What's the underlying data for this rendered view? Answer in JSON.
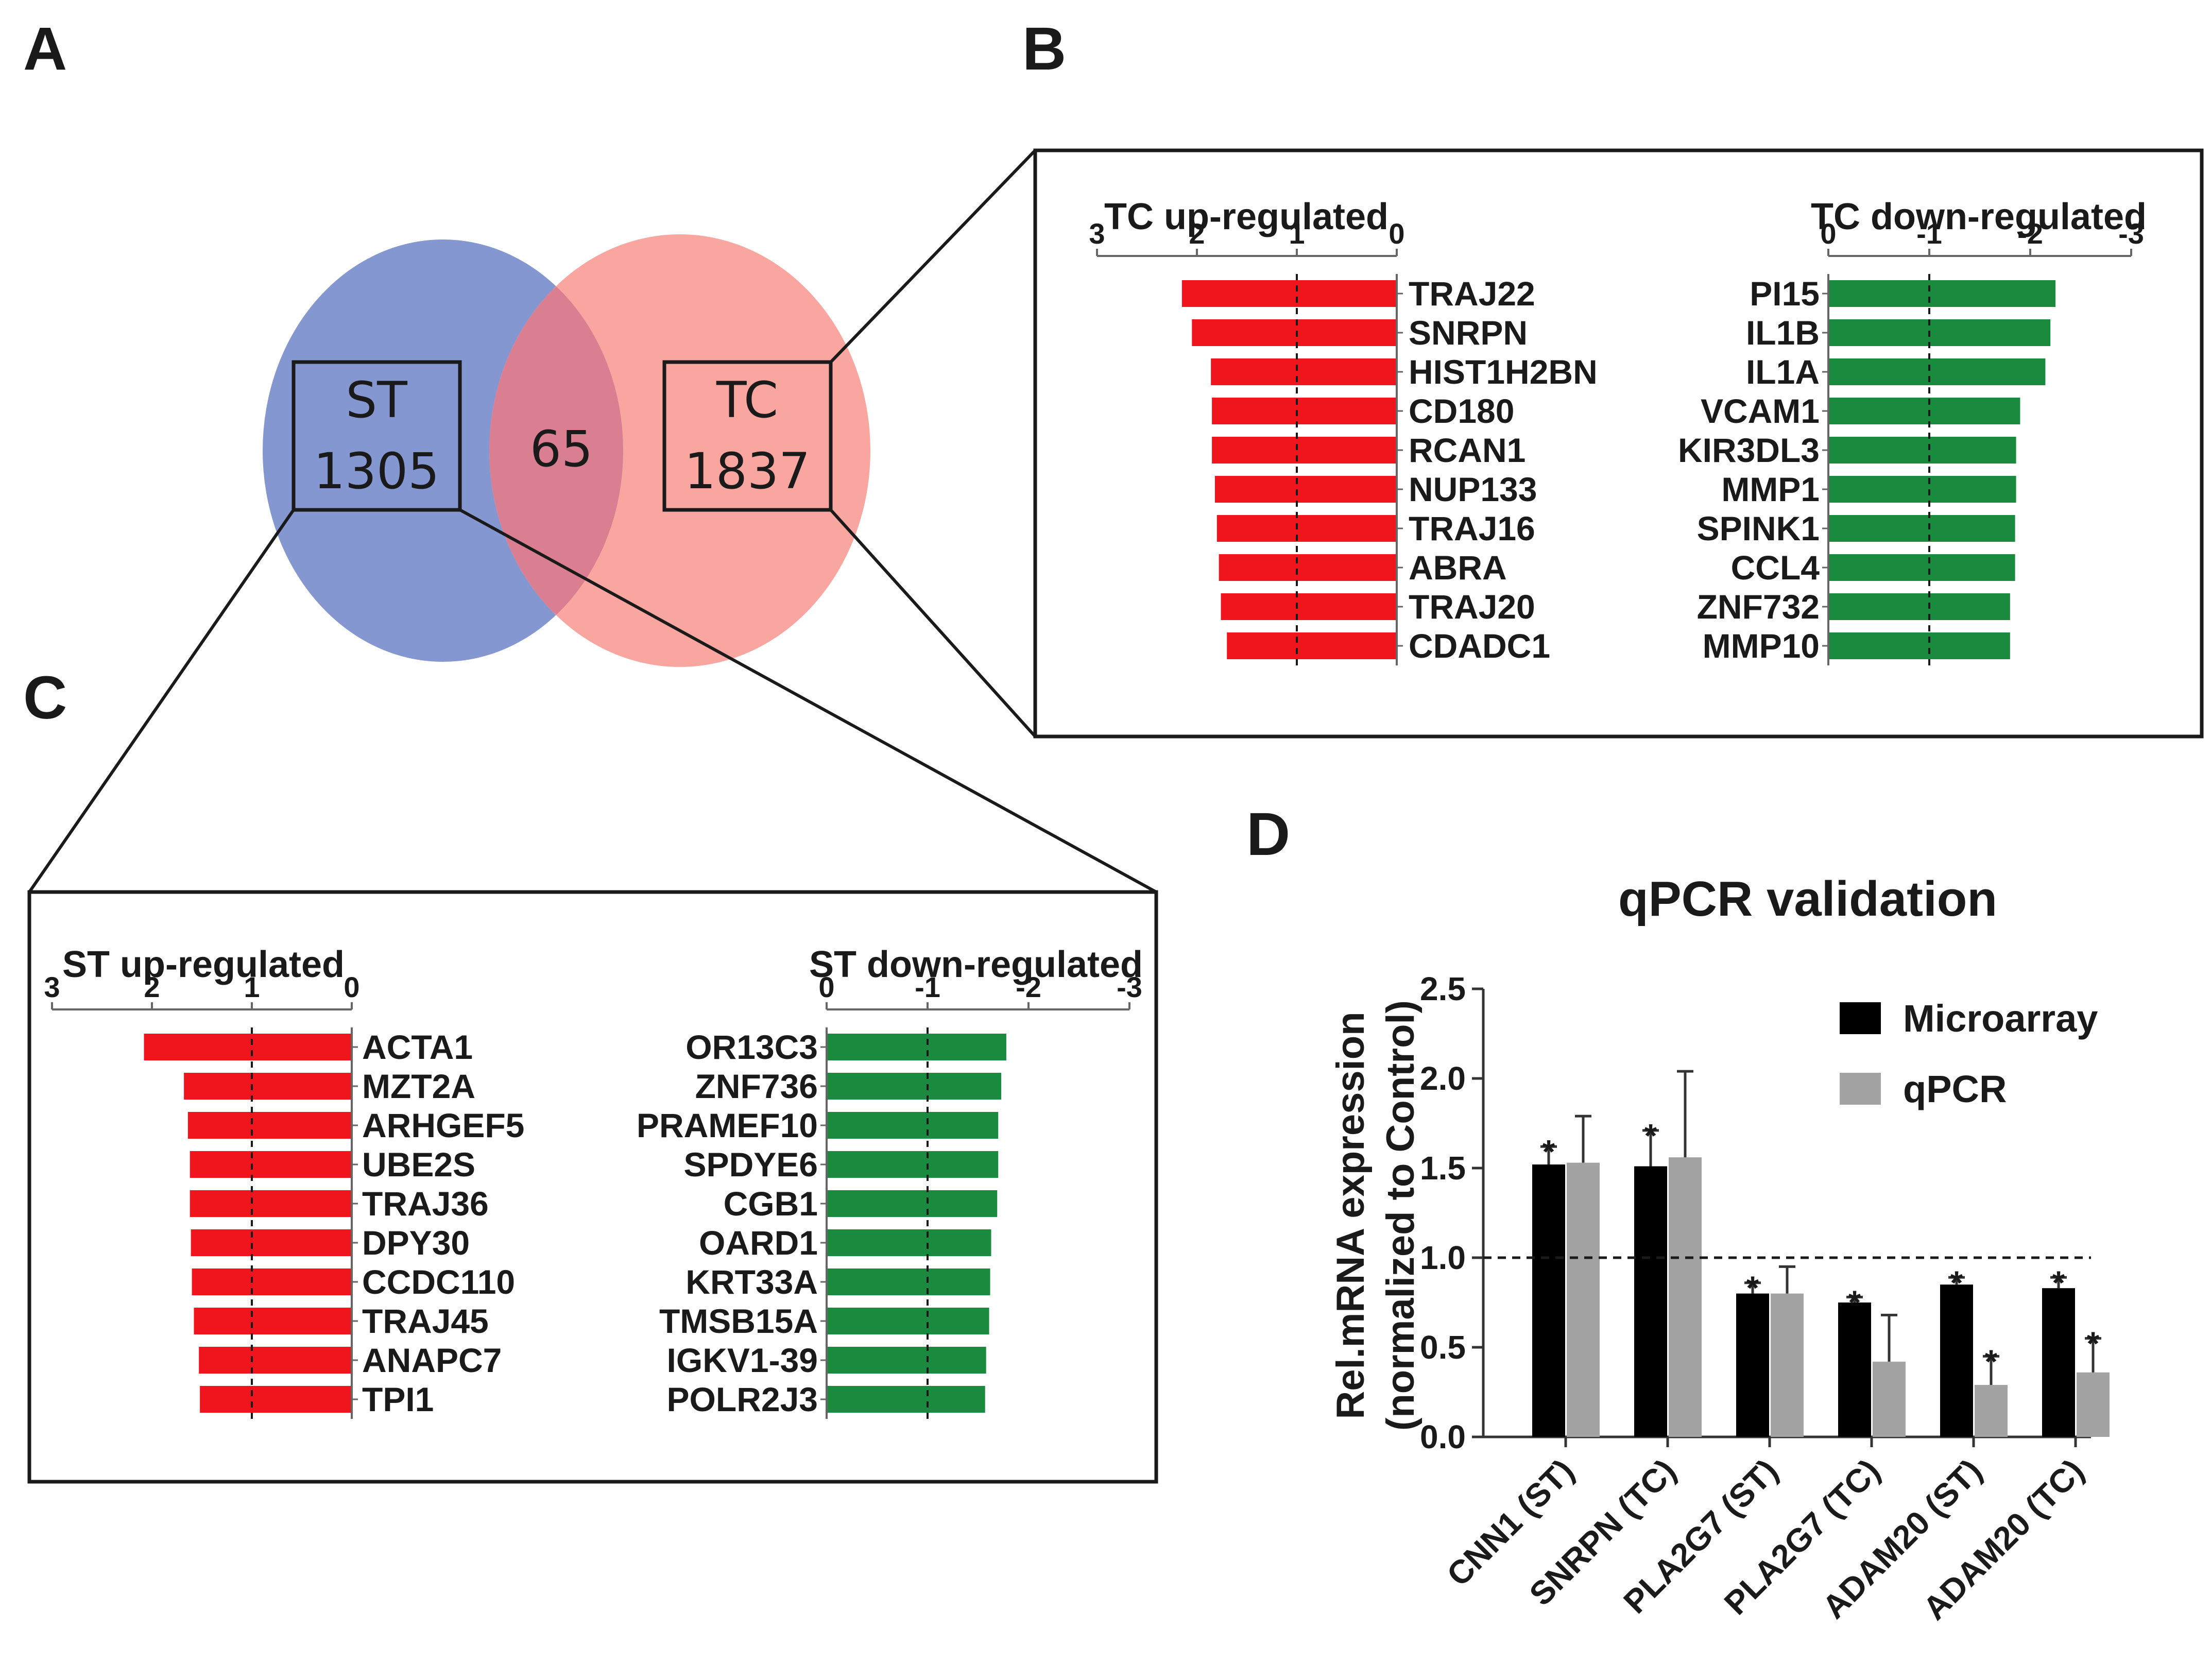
{
  "panel_letters": {
    "a": "A",
    "b": "B",
    "c": "C",
    "d": "D"
  },
  "venn": {
    "st_label": "ST",
    "st_count": "1305",
    "overlap_count": "65",
    "tc_label": "TC",
    "tc_count": "1837",
    "colors": {
      "st": "#8497d0",
      "tc": "#f9a6a0",
      "overlap": "#d97f91"
    }
  },
  "colors": {
    "up": "#f0151c",
    "down": "#1a8a3e",
    "microarray": "#000000",
    "qpcr": "#a3a3a3"
  },
  "chart_data": [
    {
      "id": "tc_up",
      "type": "bar",
      "orientation": "horizontal",
      "title": "TC up-regulated",
      "ticks": [
        "3",
        "2",
        "1",
        "0"
      ],
      "xlim": [
        3,
        0
      ],
      "reference_line": 1,
      "categories": [
        "TRAJ22",
        "SNRPN",
        "HIST1H2BN",
        "CD180",
        "RCAN1",
        "NUP133",
        "TRAJ16",
        "ABRA",
        "TRAJ20",
        "CDADC1"
      ],
      "values": [
        2.15,
        2.05,
        1.86,
        1.85,
        1.85,
        1.82,
        1.8,
        1.78,
        1.76,
        1.7
      ]
    },
    {
      "id": "tc_down",
      "type": "bar",
      "orientation": "horizontal",
      "title": "TC down-regulated",
      "ticks": [
        "0",
        "-1",
        "-2",
        "-3"
      ],
      "xlim": [
        0,
        -3
      ],
      "reference_line": -1,
      "categories": [
        "PI15",
        "IL1B",
        "IL1A",
        "VCAM1",
        "KIR3DL3",
        "MMP1",
        "SPINK1",
        "CCL4",
        "ZNF732",
        "MMP10"
      ],
      "values": [
        -2.25,
        -2.2,
        -2.15,
        -1.9,
        -1.86,
        -1.86,
        -1.85,
        -1.85,
        -1.8,
        -1.8
      ]
    },
    {
      "id": "st_up",
      "type": "bar",
      "orientation": "horizontal",
      "title": "ST up-regulated",
      "ticks": [
        "3",
        "2",
        "1",
        "0"
      ],
      "xlim": [
        3,
        0
      ],
      "reference_line": 1,
      "categories": [
        "ACTA1",
        "MZT2A",
        "ARHGEF5",
        "UBE2S",
        "TRAJ36",
        "DPY30",
        "CCDC110",
        "TRAJ45",
        "ANAPC7",
        "TPI1"
      ],
      "values": [
        2.08,
        1.68,
        1.64,
        1.62,
        1.62,
        1.61,
        1.6,
        1.58,
        1.53,
        1.52
      ]
    },
    {
      "id": "st_down",
      "type": "bar",
      "orientation": "horizontal",
      "title": "ST down-regulated",
      "ticks": [
        "0",
        "-1",
        "-2",
        "-3"
      ],
      "xlim": [
        0,
        -3
      ],
      "reference_line": -1,
      "categories": [
        "OR13C3",
        "ZNF736",
        "PRAMEF10",
        "SPDYE6",
        "CGB1",
        "OARD1",
        "KRT33A",
        "TMSB15A",
        "IGKV1-39",
        "POLR2J3"
      ],
      "values": [
        -1.78,
        -1.73,
        -1.7,
        -1.7,
        -1.69,
        -1.63,
        -1.62,
        -1.61,
        -1.58,
        -1.57
      ]
    },
    {
      "id": "qpcr",
      "type": "bar",
      "orientation": "vertical",
      "title": "qPCR validation",
      "ylabel": "Rel.mRNA expression",
      "ylabel2": "(normalized to Control)",
      "ylim": [
        0,
        2.5
      ],
      "yticks": [
        "0.0",
        "0.5",
        "1.0",
        "1.5",
        "2.0",
        "2.5"
      ],
      "reference_line": 1.0,
      "categories": [
        "CNN1 (ST)",
        "SNRPN (TC)",
        "PLA2G7 (ST)",
        "PLA2G7 (TC)",
        "ADAM20 (ST)",
        "ADAM20 (TC)"
      ],
      "series": [
        {
          "name": "Microarray",
          "values": [
            1.52,
            1.51,
            0.8,
            0.75,
            0.85,
            0.83
          ],
          "errors": [
            0.1,
            0.2,
            0.06,
            0.03,
            0.04,
            0.06
          ],
          "stars": [
            "*",
            "*",
            "*",
            "*",
            "*",
            "*"
          ]
        },
        {
          "name": "qPCR",
          "values": [
            1.53,
            1.56,
            0.8,
            0.42,
            0.29,
            0.36
          ],
          "errors": [
            0.26,
            0.48,
            0.15,
            0.26,
            0.16,
            0.19
          ],
          "stars": [
            "",
            "",
            "",
            "",
            "*",
            "*"
          ]
        }
      ]
    }
  ]
}
